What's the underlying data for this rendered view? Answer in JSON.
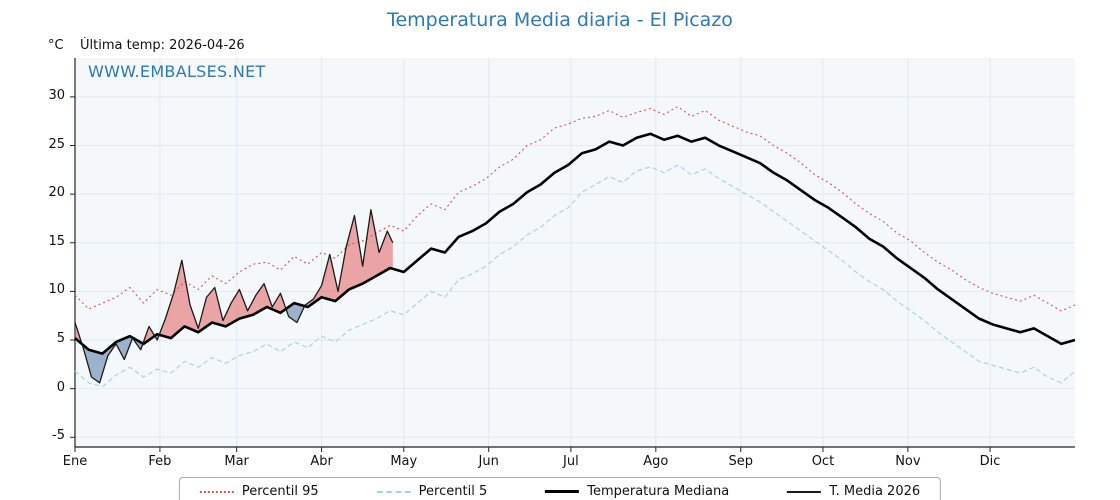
{
  "header": {
    "title": "Temperatura Media diaria - El Picazo",
    "unit_label": "°C",
    "last_temp_label": "Última temp: 2026-04-26",
    "watermark": "WWW.EMBALSES.NET"
  },
  "colors": {
    "title": "#2f79b5",
    "watermark": "#2f79b5",
    "plot_bg": "#f5f8fa",
    "grid": "#e0eaf0",
    "axis": "#222222",
    "tick_text": "#111111"
  },
  "chart_data": {
    "type": "line",
    "title": "Temperatura Media diaria - El Picazo",
    "ylabel": "°C",
    "ylim": [
      -6,
      34
    ],
    "yticks": [
      -5,
      0,
      5,
      10,
      15,
      20,
      25,
      30
    ],
    "xlim_days": [
      0,
      365
    ],
    "xticks": {
      "positions_days": [
        0,
        31,
        59,
        90,
        120,
        151,
        181,
        212,
        243,
        273,
        304,
        334
      ],
      "labels": [
        "Ene",
        "Feb",
        "Mar",
        "Abr",
        "May",
        "Jun",
        "Jul",
        "Ago",
        "Sep",
        "Oct",
        "Nov",
        "Dic"
      ]
    },
    "legend_position": "bottom",
    "grid": true,
    "series": [
      {
        "name": "Percentil 95",
        "style": "dotted",
        "color": "#d9534f",
        "width": 1.1,
        "x": [
          0,
          5,
          10,
          15,
          20,
          25,
          30,
          35,
          40,
          45,
          50,
          55,
          60,
          65,
          70,
          75,
          80,
          85,
          90,
          95,
          100,
          105,
          110,
          115,
          120,
          125,
          130,
          135,
          140,
          145,
          150,
          155,
          160,
          165,
          170,
          175,
          180,
          185,
          190,
          195,
          200,
          205,
          210,
          215,
          220,
          225,
          230,
          235,
          240,
          245,
          250,
          255,
          260,
          265,
          270,
          275,
          280,
          285,
          290,
          295,
          300,
          305,
          310,
          315,
          320,
          325,
          330,
          335,
          340,
          345,
          350,
          355,
          360,
          365
        ],
        "values": [
          9.6,
          8.2,
          8.8,
          9.4,
          10.4,
          8.8,
          10.2,
          9.6,
          11.0,
          10.2,
          11.6,
          10.8,
          12.0,
          12.8,
          13.0,
          12.2,
          13.6,
          12.8,
          14.0,
          13.4,
          14.8,
          15.2,
          16.0,
          16.8,
          16.2,
          17.8,
          19.0,
          18.4,
          20.2,
          20.8,
          21.6,
          22.8,
          23.6,
          25.0,
          25.6,
          26.8,
          27.2,
          27.8,
          28.0,
          28.6,
          27.9,
          28.4,
          28.8,
          28.2,
          29.0,
          28.0,
          28.6,
          27.6,
          27.0,
          26.4,
          26.0,
          25.0,
          24.2,
          23.2,
          22.0,
          21.2,
          20.2,
          19.0,
          18.0,
          17.2,
          16.0,
          15.2,
          14.0,
          13.0,
          12.2,
          11.2,
          10.4,
          9.8,
          9.4,
          9.0,
          9.6,
          8.8,
          8.0,
          8.6
        ]
      },
      {
        "name": "Percentil 5",
        "style": "dashed",
        "color": "#a8d4e6",
        "width": 1.2,
        "x": [
          0,
          5,
          10,
          15,
          20,
          25,
          30,
          35,
          40,
          45,
          50,
          55,
          60,
          65,
          70,
          75,
          80,
          85,
          90,
          95,
          100,
          105,
          110,
          115,
          120,
          125,
          130,
          135,
          140,
          145,
          150,
          155,
          160,
          165,
          170,
          175,
          180,
          185,
          190,
          195,
          200,
          205,
          210,
          215,
          220,
          225,
          230,
          235,
          240,
          245,
          250,
          255,
          260,
          265,
          270,
          275,
          280,
          285,
          290,
          295,
          300,
          305,
          310,
          315,
          320,
          325,
          330,
          335,
          340,
          345,
          350,
          355,
          360,
          365
        ],
        "values": [
          1.8,
          0.6,
          0.2,
          1.4,
          2.2,
          1.2,
          2.0,
          1.6,
          2.8,
          2.2,
          3.2,
          2.6,
          3.4,
          3.8,
          4.6,
          3.8,
          4.8,
          4.2,
          5.4,
          4.8,
          6.0,
          6.6,
          7.2,
          8.0,
          7.6,
          8.8,
          10.0,
          9.4,
          11.2,
          11.8,
          12.6,
          13.8,
          14.6,
          15.8,
          16.6,
          17.8,
          18.6,
          20.2,
          21.0,
          21.8,
          21.2,
          22.4,
          22.8,
          22.2,
          23.0,
          22.0,
          22.6,
          21.6,
          20.8,
          20.0,
          19.2,
          18.2,
          17.2,
          16.2,
          15.2,
          14.2,
          13.2,
          12.0,
          11.0,
          10.2,
          9.0,
          8.0,
          7.0,
          5.8,
          4.8,
          3.8,
          2.8,
          2.4,
          2.0,
          1.6,
          2.2,
          1.2,
          0.6,
          1.8
        ]
      },
      {
        "name": "Temperatura Mediana",
        "style": "solid",
        "color": "#000000",
        "width": 2.6,
        "x": [
          0,
          5,
          10,
          15,
          20,
          25,
          30,
          35,
          40,
          45,
          50,
          55,
          60,
          65,
          70,
          75,
          80,
          85,
          90,
          95,
          100,
          105,
          110,
          115,
          120,
          125,
          130,
          135,
          140,
          145,
          150,
          155,
          160,
          165,
          170,
          175,
          180,
          185,
          190,
          195,
          200,
          205,
          210,
          215,
          220,
          225,
          230,
          235,
          240,
          245,
          250,
          255,
          260,
          265,
          270,
          275,
          280,
          285,
          290,
          295,
          300,
          305,
          310,
          315,
          320,
          325,
          330,
          335,
          340,
          345,
          350,
          355,
          360,
          365
        ],
        "values": [
          5.2,
          4.0,
          3.6,
          4.8,
          5.4,
          4.6,
          5.6,
          5.2,
          6.4,
          5.8,
          6.8,
          6.4,
          7.2,
          7.6,
          8.4,
          7.8,
          8.8,
          8.4,
          9.4,
          9.0,
          10.2,
          10.8,
          11.6,
          12.4,
          12.0,
          13.2,
          14.4,
          14.0,
          15.6,
          16.2,
          17.0,
          18.2,
          19.0,
          20.2,
          21.0,
          22.2,
          23.0,
          24.2,
          24.6,
          25.4,
          25.0,
          25.8,
          26.2,
          25.6,
          26.0,
          25.4,
          25.8,
          25.0,
          24.4,
          23.8,
          23.2,
          22.2,
          21.4,
          20.4,
          19.4,
          18.6,
          17.6,
          16.6,
          15.4,
          14.6,
          13.4,
          12.4,
          11.4,
          10.2,
          9.2,
          8.2,
          7.2,
          6.6,
          6.2,
          5.8,
          6.2,
          5.4,
          4.6,
          5.0
        ]
      },
      {
        "name": "T. Media 2026",
        "style": "solid",
        "color": "#1a1a1a",
        "width": 1.3,
        "fill_vs": "Temperatura Mediana",
        "fill_above": "rgba(225,80,80,0.50)",
        "fill_below": "rgba(80,120,165,0.55)",
        "x": [
          0,
          3,
          6,
          9,
          12,
          15,
          18,
          21,
          24,
          27,
          30,
          33,
          36,
          39,
          42,
          45,
          48,
          51,
          54,
          57,
          60,
          63,
          66,
          69,
          72,
          75,
          78,
          81,
          84,
          87,
          90,
          93,
          96,
          99,
          102,
          105,
          108,
          111,
          114,
          116
        ],
        "values": [
          6.8,
          4.2,
          1.2,
          0.6,
          3.4,
          4.6,
          3.0,
          5.2,
          4.0,
          6.4,
          5.0,
          7.2,
          9.8,
          13.2,
          8.6,
          6.2,
          9.4,
          10.4,
          7.0,
          8.8,
          10.2,
          8.0,
          9.6,
          10.8,
          8.4,
          9.8,
          7.4,
          6.8,
          8.6,
          9.2,
          10.6,
          13.8,
          10.0,
          14.6,
          17.8,
          12.6,
          18.4,
          14.0,
          16.2,
          15.0
        ]
      }
    ]
  }
}
